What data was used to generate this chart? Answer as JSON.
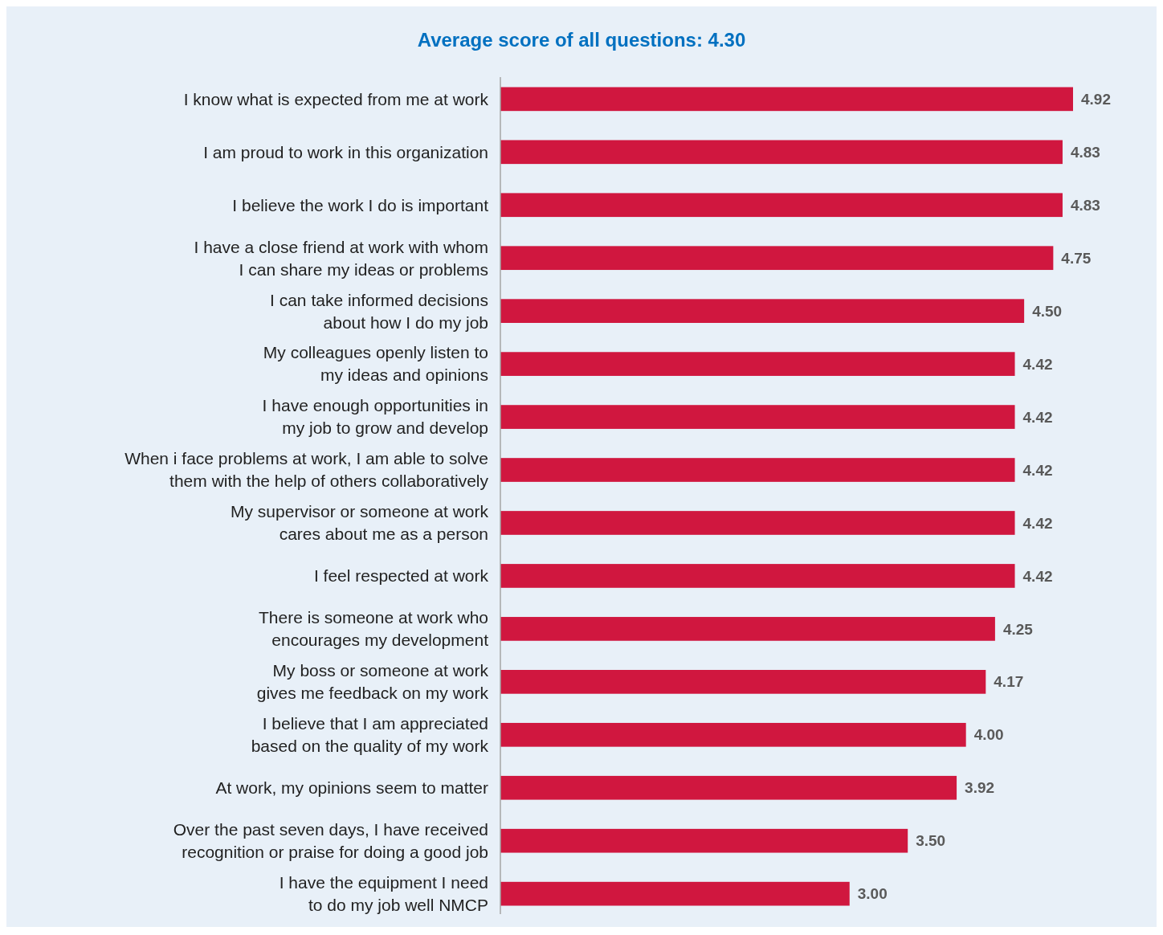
{
  "chart_data": {
    "type": "bar",
    "orientation": "horizontal",
    "title": "Average score of all questions: 4.30",
    "categories": [
      "I know what is expected from me at work",
      "I am proud to work in this organization",
      "I believe the work I do is important",
      "I have a close friend at work with whom\nI can share my ideas or problems",
      "I can take informed decisions\nabout how I do my job",
      "My colleagues openly listen to\nmy ideas and opinions",
      "I have enough opportunities in\nmy job to grow and develop",
      "When i face problems at work, I am able to solve\nthem with the help of others collaboratively",
      "My supervisor or someone at work\ncares about me as a person",
      "I feel respected at work",
      "There is someone at work who\nencourages my development",
      "My boss or someone at work\ngives me feedback on my work",
      "I believe that I am appreciated\nbased on the quality of my work",
      "At work, my opinions seem to matter",
      "Over the past seven days, I have received\nrecognition or praise for doing a good job",
      "I have the equipment I need\nto do my job well NMCP"
    ],
    "values": [
      4.92,
      4.83,
      4.83,
      4.75,
      4.5,
      4.42,
      4.42,
      4.42,
      4.42,
      4.42,
      4.25,
      4.17,
      4.0,
      3.92,
      3.5,
      3.0
    ],
    "value_labels": [
      "4.92",
      "4.83",
      "4.83",
      "4.75",
      "4.50",
      "4.42",
      "4.42",
      "4.42",
      "4.42",
      "4.42",
      "4.25",
      "4.17",
      "4.00",
      "3.92",
      "3.50",
      "3.00"
    ],
    "color": "#d0173f"
  }
}
